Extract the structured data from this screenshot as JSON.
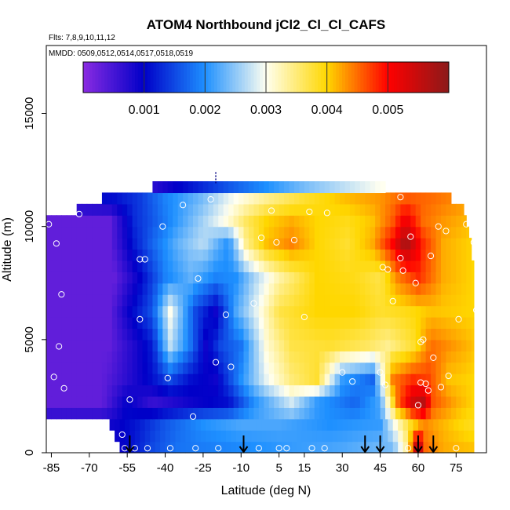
{
  "chart_data": {
    "type": "heatmap",
    "title": "ATOM4 Northbound jCl2_Cl_Cl_CAFS",
    "flights_text": "Flts: 7,8,9,10,11,12",
    "dates_text": "MMDD: 0509,0512,0514,0517,0518,0519",
    "xlabel": "Latitude (deg N)",
    "ylabel": "Altitude (m)",
    "xlim": [
      -87,
      87
    ],
    "ylim": [
      0,
      18000
    ],
    "x_ticks": [
      -85,
      -70,
      -55,
      -40,
      -25,
      -10,
      5,
      15,
      30,
      45,
      60,
      75
    ],
    "y_ticks": [
      0,
      5000,
      10000,
      15000
    ],
    "colorbar": {
      "min": 0,
      "max": 0.006,
      "ticks": [
        0.001,
        0.002,
        0.003,
        0.004,
        0.005
      ],
      "tick_labels": [
        "0.001",
        "0.002",
        "0.003",
        "0.004",
        "0.005"
      ],
      "colors": [
        "#8a2be2",
        "#0000c8",
        "#1e90ff",
        "#fffff0",
        "#ffd700",
        "#ff0000",
        "#8b1a1a"
      ]
    },
    "arrow_latitudes": [
      -54,
      -9,
      39,
      45,
      60,
      66
    ],
    "altitude_rows": [
      250,
      750,
      1250,
      1750,
      2250,
      2750,
      3250,
      3750,
      4250,
      4750,
      5250,
      5750,
      6250,
      6750,
      7250,
      7750,
      8250,
      8750,
      9250,
      9750,
      10250,
      10750,
      11250,
      11750
    ],
    "field_nodes": [
      {
        "alt": 250,
        "lats": [
          -58,
          -45,
          -35,
          -20,
          -5,
          10,
          30,
          50,
          56,
          58,
          60,
          63,
          70,
          80
        ],
        "vals": [
          0.0009,
          0.0015,
          0.0018,
          0.0019,
          0.002,
          0.0021,
          0.0022,
          0.0024,
          0.0035,
          0.005,
          0.0058,
          0.0045,
          0.0042,
          0.0041
        ]
      },
      {
        "alt": 1250,
        "lats": [
          -60,
          -50,
          -40,
          -25,
          -10,
          5,
          25,
          45,
          52,
          58,
          62,
          68,
          80
        ],
        "vals": [
          0.0009,
          0.0012,
          0.0016,
          0.002,
          0.0022,
          0.0022,
          0.002,
          0.0021,
          0.0032,
          0.004,
          0.0044,
          0.0042,
          0.0039
        ]
      },
      {
        "alt": 2250,
        "lats": [
          -87,
          -65,
          -55,
          -45,
          -30,
          -15,
          -5,
          10,
          20,
          35,
          45,
          52,
          58,
          62,
          66,
          75,
          82
        ],
        "vals": [
          0.0003,
          0.0003,
          0.001,
          0.0006,
          0.0009,
          0.0011,
          0.002,
          0.0028,
          0.0021,
          0.0017,
          0.0022,
          0.0045,
          0.0054,
          0.0056,
          0.0046,
          0.0042,
          0.004
        ]
      },
      {
        "alt": 3250,
        "lats": [
          -87,
          -65,
          -55,
          -45,
          -38,
          -30,
          -20,
          -10,
          0,
          10,
          20,
          30,
          42,
          50,
          58,
          64,
          72,
          82
        ],
        "vals": [
          0.0003,
          0.0003,
          0.0007,
          0.0011,
          0.0015,
          0.0011,
          0.0009,
          0.002,
          0.0029,
          0.0035,
          0.0038,
          0.0021,
          0.0017,
          0.0044,
          0.0048,
          0.0047,
          0.0041,
          0.004
        ]
      },
      {
        "alt": 4750,
        "lats": [
          -87,
          -62,
          -52,
          -45,
          -38,
          -30,
          -24,
          -18,
          -10,
          0,
          10,
          25,
          40,
          48,
          58,
          65,
          82
        ],
        "vals": [
          0.0003,
          0.0003,
          0.0008,
          0.0012,
          0.0027,
          0.0018,
          0.0009,
          0.0015,
          0.0018,
          0.0031,
          0.0037,
          0.0038,
          0.0036,
          0.0034,
          0.0038,
          0.0045,
          0.0041
        ]
      },
      {
        "alt": 6250,
        "lats": [
          -87,
          -62,
          -55,
          -45,
          -38,
          -28,
          -20,
          -12,
          -5,
          5,
          20,
          35,
          45,
          55,
          65,
          82
        ],
        "vals": [
          0.0003,
          0.0003,
          0.0009,
          0.0016,
          0.003,
          0.0015,
          0.0009,
          0.0022,
          0.0028,
          0.0037,
          0.004,
          0.004,
          0.0038,
          0.0039,
          0.0041,
          0.004
        ]
      },
      {
        "alt": 7750,
        "lats": [
          -87,
          -60,
          -50,
          -40,
          -30,
          -20,
          -12,
          -5,
          5,
          20,
          35,
          45,
          52,
          60,
          70,
          82
        ],
        "vals": [
          0.0003,
          0.0003,
          0.001,
          0.0019,
          0.0023,
          0.0019,
          0.002,
          0.0026,
          0.0033,
          0.004,
          0.0039,
          0.0037,
          0.0044,
          0.0048,
          0.0042,
          0.004
        ]
      },
      {
        "alt": 9250,
        "lats": [
          -87,
          -62,
          -52,
          -45,
          -35,
          -25,
          -15,
          -8,
          0,
          10,
          20,
          32,
          42,
          50,
          55,
          62,
          70,
          82
        ],
        "vals": [
          0.0003,
          0.0003,
          0.0012,
          0.0017,
          0.0023,
          0.0027,
          0.002,
          0.0034,
          0.0041,
          0.0044,
          0.004,
          0.0038,
          0.0042,
          0.005,
          0.0058,
          0.0048,
          0.0042,
          0.004
        ]
      },
      {
        "alt": 10250,
        "lats": [
          -87,
          -62,
          -52,
          -45,
          -35,
          -25,
          -15,
          -8,
          0,
          10,
          20,
          32,
          42,
          50,
          55,
          62,
          70,
          82
        ],
        "vals": [
          0.0003,
          0.0003,
          0.0013,
          0.0016,
          0.0021,
          0.0026,
          0.0031,
          0.0036,
          0.004,
          0.0042,
          0.004,
          0.0039,
          0.0041,
          0.0046,
          0.0052,
          0.0045,
          0.0043,
          0.0041
        ]
      },
      {
        "alt": 11250,
        "lats": [
          -75,
          -60,
          -50,
          -40,
          -25,
          -15,
          0,
          15,
          30,
          45,
          55,
          65,
          80
        ],
        "vals": [
          0.001,
          0.0011,
          0.0014,
          0.0019,
          0.0024,
          0.0029,
          0.0034,
          0.0038,
          0.0041,
          0.0043,
          0.0046,
          0.0045,
          0.0043
        ]
      },
      {
        "alt": 11750,
        "lats": [
          -45,
          -35,
          -25,
          -15,
          0,
          15,
          30,
          45
        ],
        "vals": [
          0.0007,
          0.001,
          0.0013,
          0.0016,
          0.002,
          0.0024,
          0.0027,
          0.003
        ]
      }
    ],
    "coverage": [
      {
        "alt": 250,
        "from": -58,
        "to": 82
      },
      {
        "alt": 750,
        "from": -60,
        "to": 82
      },
      {
        "alt": 1250,
        "from": -62,
        "to": 82
      },
      {
        "alt": 1750,
        "from": -87,
        "to": 82
      },
      {
        "alt": 2250,
        "from": -87,
        "to": 82
      },
      {
        "alt": 2750,
        "from": -87,
        "to": 82
      },
      {
        "alt": 3250,
        "from": -87,
        "to": 82
      },
      {
        "alt": 3750,
        "from": -87,
        "to": 82
      },
      {
        "alt": 4250,
        "from": -87,
        "to": 82
      },
      {
        "alt": 4750,
        "from": -87,
        "to": 82
      },
      {
        "alt": 5250,
        "from": -87,
        "to": 82
      },
      {
        "alt": 5750,
        "from": -87,
        "to": 82
      },
      {
        "alt": 6250,
        "from": -87,
        "to": 82
      },
      {
        "alt": 6750,
        "from": -87,
        "to": 82
      },
      {
        "alt": 7250,
        "from": -87,
        "to": 82
      },
      {
        "alt": 7750,
        "from": -87,
        "to": 82
      },
      {
        "alt": 8250,
        "from": -87,
        "to": 82
      },
      {
        "alt": 8750,
        "from": -87,
        "to": 81
      },
      {
        "alt": 9250,
        "from": -87,
        "to": 81
      },
      {
        "alt": 9750,
        "from": -87,
        "to": 80
      },
      {
        "alt": 10250,
        "from": -87,
        "to": 79
      },
      {
        "alt": 10750,
        "from": -75,
        "to": 78
      },
      {
        "alt": 11250,
        "from": -65,
        "to": 73
      },
      {
        "alt": 11750,
        "from": -45,
        "to": 47
      }
    ],
    "sample_points": [
      {
        "lat": -86,
        "alt": 10100
      },
      {
        "lat": -84,
        "alt": 3350
      },
      {
        "lat": -83,
        "alt": 9250
      },
      {
        "lat": -82,
        "alt": 4700
      },
      {
        "lat": -81,
        "alt": 7000
      },
      {
        "lat": -80,
        "alt": 2850
      },
      {
        "lat": -80,
        "alt": 1300
      },
      {
        "lat": -74,
        "alt": 10550
      },
      {
        "lat": -57,
        "alt": 800
      },
      {
        "lat": -56,
        "alt": 200
      },
      {
        "lat": -54,
        "alt": 2350
      },
      {
        "lat": -52,
        "alt": 200
      },
      {
        "lat": -50,
        "alt": 5900
      },
      {
        "lat": -50,
        "alt": 8550
      },
      {
        "lat": -48,
        "alt": 8550
      },
      {
        "lat": -47,
        "alt": 200
      },
      {
        "lat": -41,
        "alt": 10000
      },
      {
        "lat": -39,
        "alt": 3300
      },
      {
        "lat": -38,
        "alt": 200
      },
      {
        "lat": -33,
        "alt": 10950
      },
      {
        "lat": -29,
        "alt": 1600
      },
      {
        "lat": -28,
        "alt": 200
      },
      {
        "lat": -27,
        "alt": 7700
      },
      {
        "lat": -22,
        "alt": 11200
      },
      {
        "lat": -20,
        "alt": 4000
      },
      {
        "lat": -19,
        "alt": 200
      },
      {
        "lat": -16,
        "alt": 6100
      },
      {
        "lat": -14,
        "alt": 3800
      },
      {
        "lat": -5,
        "alt": 6600
      },
      {
        "lat": -3,
        "alt": 200
      },
      {
        "lat": -2,
        "alt": 9500
      },
      {
        "lat": 2,
        "alt": 10700
      },
      {
        "lat": 4,
        "alt": 9300
      },
      {
        "lat": 5,
        "alt": 200
      },
      {
        "lat": 8,
        "alt": 200
      },
      {
        "lat": 11,
        "alt": 9400
      },
      {
        "lat": 15,
        "alt": 6000
      },
      {
        "lat": 17,
        "alt": 10650
      },
      {
        "lat": 18,
        "alt": 200
      },
      {
        "lat": 23,
        "alt": 200
      },
      {
        "lat": 24,
        "alt": 10600
      },
      {
        "lat": 30,
        "alt": 3550
      },
      {
        "lat": 34,
        "alt": 3150
      },
      {
        "lat": 45,
        "alt": 3550
      },
      {
        "lat": 46,
        "alt": 8200
      },
      {
        "lat": 47,
        "alt": 3000
      },
      {
        "lat": 48,
        "alt": 8100
      },
      {
        "lat": 50,
        "alt": 6700
      },
      {
        "lat": 53,
        "alt": 11300
      },
      {
        "lat": 53,
        "alt": 8600
      },
      {
        "lat": 54,
        "alt": 8050
      },
      {
        "lat": 56,
        "alt": 200
      },
      {
        "lat": 57,
        "alt": 9550
      },
      {
        "lat": 59,
        "alt": 7500
      },
      {
        "lat": 60,
        "alt": 2100
      },
      {
        "lat": 61,
        "alt": 4900
      },
      {
        "lat": 61,
        "alt": 3100
      },
      {
        "lat": 62,
        "alt": 5000
      },
      {
        "lat": 63,
        "alt": 3050
      },
      {
        "lat": 64,
        "alt": 2750
      },
      {
        "lat": 65,
        "alt": 8700
      },
      {
        "lat": 66,
        "alt": 4200
      },
      {
        "lat": 68,
        "alt": 10000
      },
      {
        "lat": 69,
        "alt": 2900
      },
      {
        "lat": 71,
        "alt": 9800
      },
      {
        "lat": 72,
        "alt": 3400
      },
      {
        "lat": 75,
        "alt": 200
      },
      {
        "lat": 76,
        "alt": 5900
      },
      {
        "lat": 79,
        "alt": 10100
      },
      {
        "lat": 82,
        "alt": 9300
      },
      {
        "lat": 83,
        "alt": 6300
      }
    ],
    "profile_marker": {
      "lat": -20,
      "alt_from": 11900,
      "alt_to": 12400
    }
  }
}
